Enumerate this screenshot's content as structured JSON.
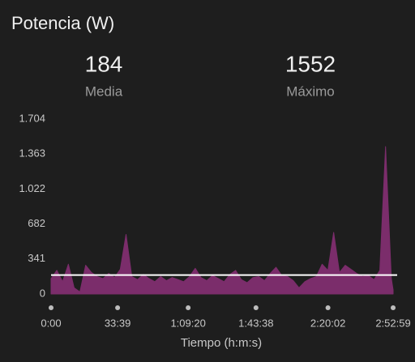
{
  "chart_data": {
    "type": "area",
    "title": "Potencia (W)",
    "stats": [
      {
        "value": 184,
        "label": "Media"
      },
      {
        "value": 1552,
        "label": "Máximo"
      }
    ],
    "x_label": "Tiempo (h:m:s)",
    "x": [
      0,
      175,
      350,
      525,
      700,
      875,
      1050,
      1225,
      1400,
      1575,
      1750,
      1925,
      2100,
      2275,
      2450,
      2625,
      2800,
      2975,
      3150,
      3325,
      3500,
      3675,
      3850,
      4025,
      4200,
      4375,
      4550,
      4725,
      4900,
      5075,
      5250,
      5425,
      5600,
      5775,
      5950,
      6125,
      6300,
      6475,
      6650,
      6825,
      7000,
      7175,
      7350,
      7525,
      7700,
      7875,
      8050,
      8225,
      8400,
      8575,
      8750,
      8925,
      9100,
      9275,
      9450,
      9625,
      9800,
      9975,
      10150,
      10325,
      10379
    ],
    "series": [
      {
        "name": "Potencia",
        "color": "#7b2d6b",
        "values": [
          150,
          230,
          120,
          290,
          60,
          20,
          280,
          210,
          170,
          150,
          200,
          160,
          240,
          580,
          170,
          140,
          190,
          150,
          120,
          170,
          130,
          160,
          140,
          120,
          170,
          250,
          160,
          130,
          180,
          150,
          120,
          190,
          230,
          140,
          110,
          160,
          170,
          130,
          200,
          260,
          180,
          170,
          130,
          60,
          120,
          150,
          170,
          290,
          230,
          600,
          210,
          280,
          240,
          200,
          170,
          180,
          140,
          230,
          1436,
          150,
          40
        ]
      }
    ],
    "xlim": [
      0,
      10379
    ],
    "xticks": [
      {
        "value": 0,
        "label": "0:00"
      },
      {
        "value": 2019,
        "label": "33:39"
      },
      {
        "value": 4160,
        "label": "1:09:20"
      },
      {
        "value": 6218,
        "label": "1:43:38"
      },
      {
        "value": 8402,
        "label": "2:20:02"
      },
      {
        "value": 10379,
        "label": "2:52:59"
      }
    ],
    "ylim": [
      0,
      1704
    ],
    "yticks": [
      0,
      341,
      682,
      {
        "value": 1022,
        "label": "1.022"
      },
      {
        "value": 1363,
        "label": "1.363"
      },
      {
        "value": 1704,
        "label": "1.704"
      }
    ],
    "average_color": "#ffffff"
  }
}
